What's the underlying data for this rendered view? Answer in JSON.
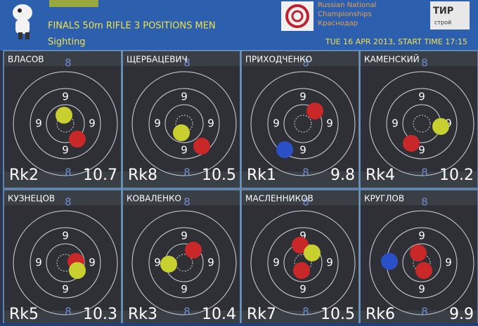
{
  "header": {
    "event": "FINALS 50m RIFLE 3 POSITIONS MEN",
    "phase": "Sighting",
    "championship": [
      "Russian National",
      "Championships",
      "Краснодар"
    ],
    "datetime": "TUE 16 APR 2013, START TIME 17:15",
    "logo": "ТИР",
    "logo_sub": "строй"
  },
  "target": {
    "inner_ring": "9",
    "outer_ring": "8"
  },
  "panels": [
    {
      "name": "ВЛАСОВ",
      "rank": "Rk2",
      "score": 10.7
    },
    {
      "name": "ЩЕРБАЦЕВИЧ",
      "rank": "Rk8",
      "score": 10.5
    },
    {
      "name": "ПРИХОДЧЕНКО",
      "rank": "Rk1",
      "score": 9.8
    },
    {
      "name": "КАМЕНСКИЙ",
      "rank": "Rk4",
      "score": 10.2
    },
    {
      "name": "КУЗНЕЦОВ",
      "rank": "Rk5",
      "score": 10.3
    },
    {
      "name": "КОВАЛЕНКО",
      "rank": "Rk3",
      "score": 10.4
    },
    {
      "name": "МАСЛЕННИКОВ",
      "rank": "Rk7",
      "score": 10.5
    },
    {
      "name": "КРУГЛОВ",
      "rank": "Rk6",
      "score": 9.9
    }
  ]
}
